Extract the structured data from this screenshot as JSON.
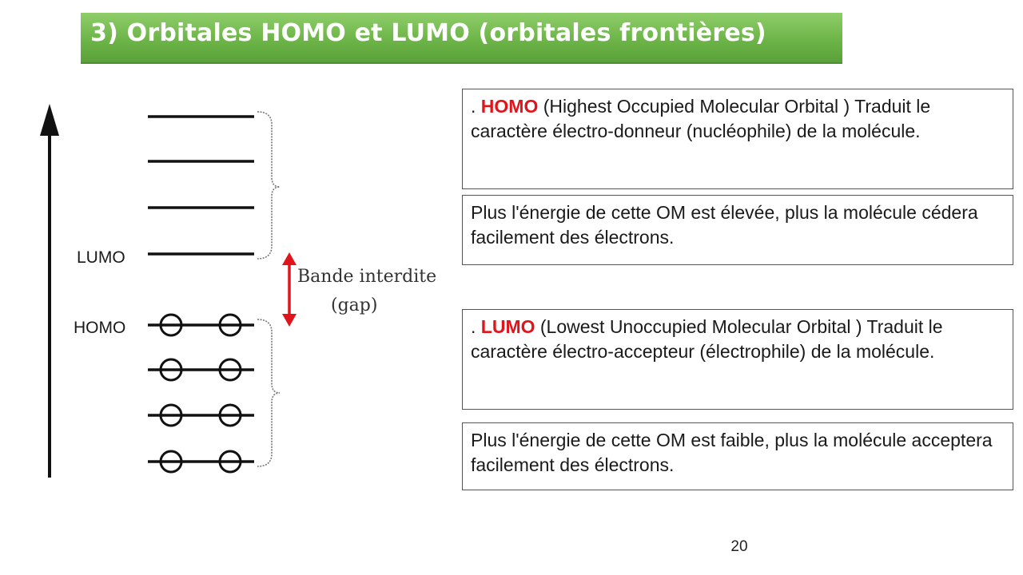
{
  "slide": {
    "title": "3) Orbitales HOMO et LUMO (orbitales frontières)",
    "page_number": "20"
  },
  "diagram": {
    "lumo_label": "LUMO",
    "homo_label": "HOMO",
    "gap_label_line1": "Bande interdite",
    "gap_label_line2": "(gap)",
    "unoccupied_levels": 4,
    "occupied_levels": 4,
    "electrons_per_occupied_level": 2,
    "colors": {
      "lines": "#111111",
      "gap_arrow": "#e0141b",
      "title_bar": "#6db548"
    }
  },
  "boxes": {
    "homo_def": {
      "lead": ". ",
      "keyword": "HOMO",
      "text": " (Highest Occupied Molecular Orbital ) Traduit le caractère électro-donneur (nucléophile) de la molécule."
    },
    "homo_energy": {
      "text": "Plus l'énergie de cette OM est élevée, plus la molécule cédera facilement des électrons."
    },
    "lumo_def": {
      "lead": ". ",
      "keyword": "LUMO",
      "text": " (Lowest Unoccupied Molecular Orbital ) Traduit le caractère électro-accepteur (électrophile) de la molécule."
    },
    "lumo_energy": {
      "text": "Plus l'énergie de cette OM est faible, plus la molécule acceptera facilement des électrons."
    }
  }
}
